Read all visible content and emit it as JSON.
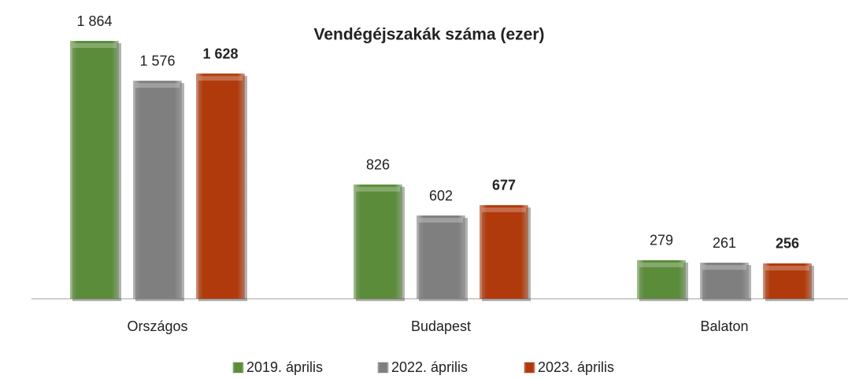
{
  "chart_data": {
    "type": "bar",
    "title": "Vendégéjszakák száma (ezer)",
    "categories": [
      "Országos",
      "Budapest",
      "Balaton"
    ],
    "series": [
      {
        "name": "2019. április",
        "color": "#5b8c3a",
        "values": [
          1864,
          826,
          279
        ],
        "value_labels": [
          "1 864",
          "826",
          "279"
        ]
      },
      {
        "name": "2022. április",
        "color": "#7f7f7f",
        "values": [
          1576,
          602,
          261
        ],
        "value_labels": [
          "1 576",
          "602",
          "261"
        ]
      },
      {
        "name": "2023. április",
        "color": "#b03a0c",
        "values": [
          1628,
          677,
          256
        ],
        "value_labels": [
          "1 628",
          "677",
          "256"
        ]
      }
    ]
  }
}
